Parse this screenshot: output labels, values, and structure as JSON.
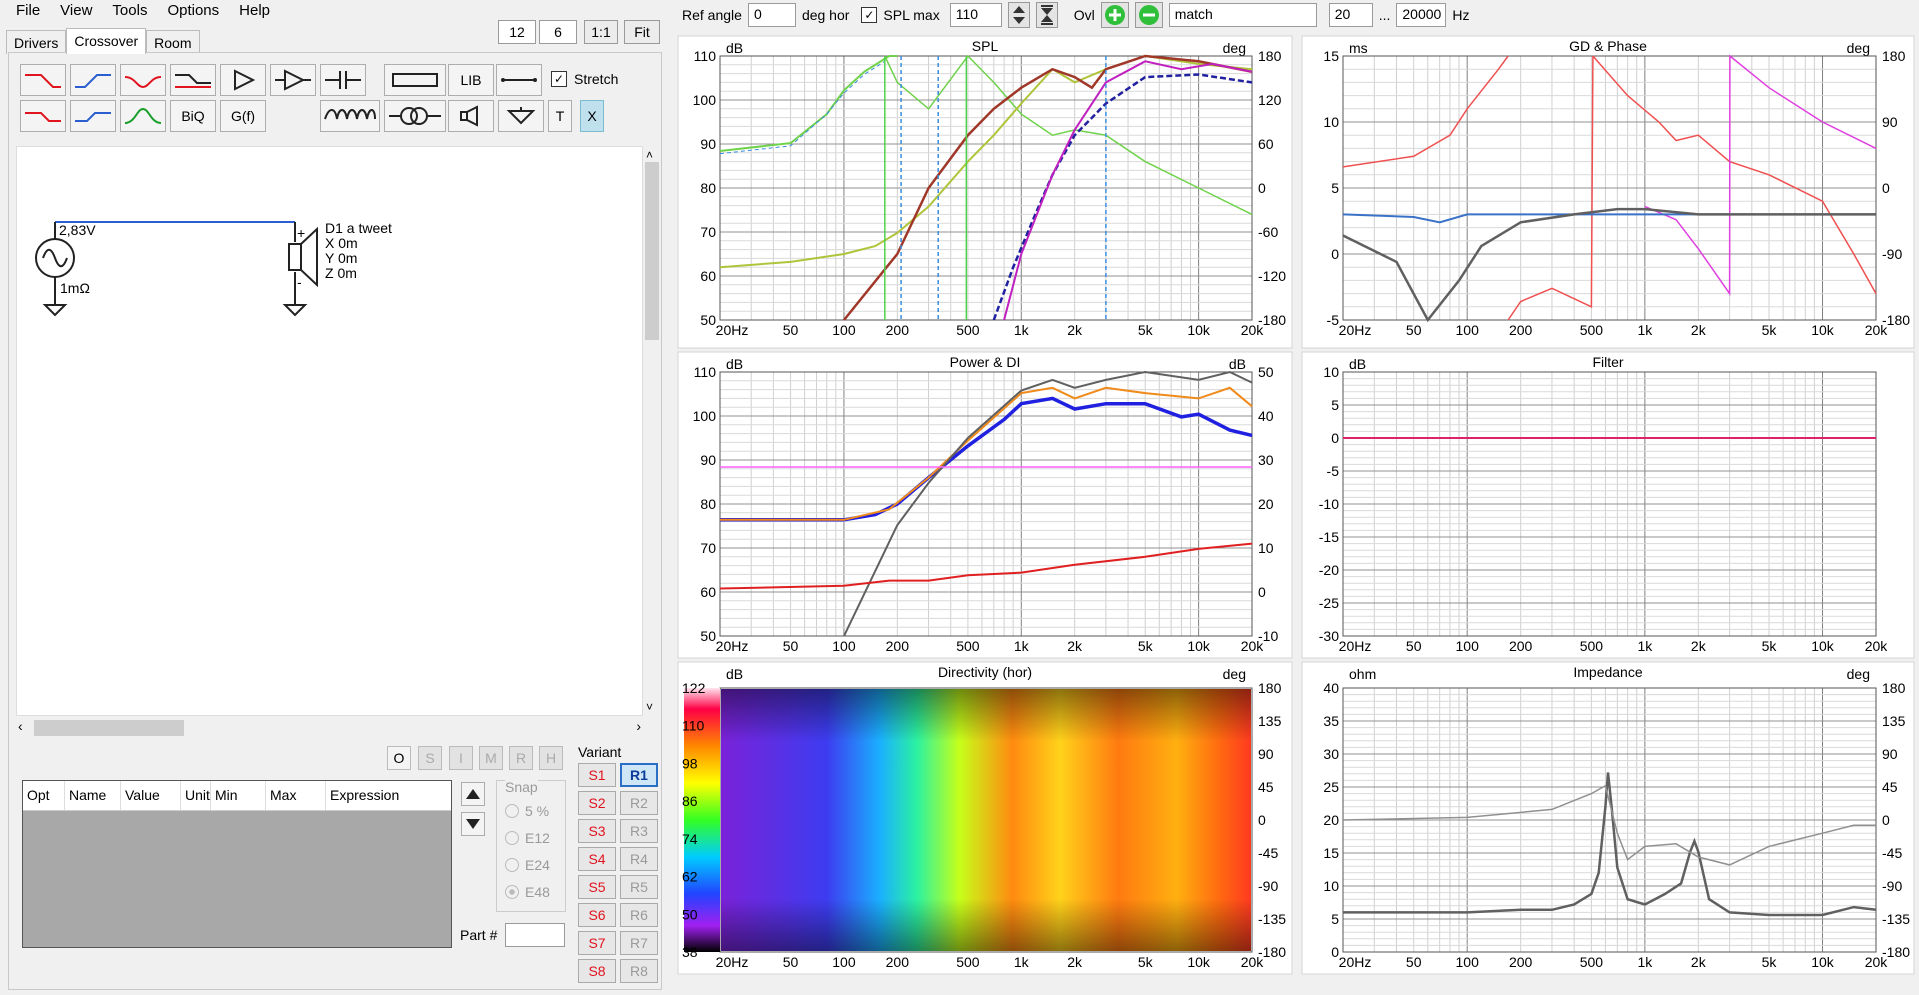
{
  "menu": [
    "File",
    "View",
    "Tools",
    "Options",
    "Help"
  ],
  "tabs": [
    "Drivers",
    "Crossover",
    "Room"
  ],
  "zoom": {
    "a": "12",
    "b": "6",
    "one_to_one": "1:1",
    "fit": "Fit"
  },
  "toolbar": {
    "biq": "BiQ",
    "gf": "G(f)",
    "lib": "LIB",
    "t": "T",
    "x": "X",
    "stretch": "Stretch"
  },
  "schematic": {
    "source_voltage": "2,83V",
    "source_res": "1mΩ",
    "driver_name": "D1 a tweet",
    "driver_x": "X 0m",
    "driver_y": "Y 0m",
    "driver_z": "Z 0m",
    "plus": "+",
    "minus": "-"
  },
  "opt_buttons": [
    "O",
    "S",
    "I",
    "M",
    "R",
    "H"
  ],
  "grid_headers": [
    "Opt",
    "Name",
    "Value",
    "Unit",
    "Min",
    "Max",
    "Expression"
  ],
  "snap": {
    "title": "Snap",
    "options": [
      "5 %",
      "E12",
      "E24",
      "E48"
    ]
  },
  "part_label": "Part #",
  "variant": {
    "title": "Variant",
    "s": [
      "S1",
      "S2",
      "S3",
      "S4",
      "S5",
      "S6",
      "S7",
      "S8"
    ],
    "r": [
      "R1",
      "R2",
      "R3",
      "R4",
      "R5",
      "R6",
      "R7",
      "R8"
    ]
  },
  "topbar": {
    "ref_angle_label": "Ref angle",
    "ref_angle": "0",
    "deg_hor": "deg hor",
    "spl_max_label": "SPL max",
    "spl_max": "110",
    "ovl": "Ovl",
    "match": "match",
    "f_low": "20",
    "dots": "...",
    "f_high": "20000",
    "hz": "Hz"
  },
  "freq_ticks": [
    "20Hz",
    "50",
    "100",
    "200",
    "500",
    "1k",
    "2k",
    "5k",
    "10k",
    "20k"
  ],
  "charts": {
    "spl": {
      "title": "SPL",
      "left_unit": "dB",
      "right_unit": "deg",
      "left_ticks": [
        "110",
        "100",
        "90",
        "80",
        "70",
        "60",
        "50"
      ],
      "right_ticks": [
        "180",
        "120",
        "60",
        "0",
        "-60",
        "-120",
        "-180"
      ]
    },
    "gd": {
      "title": "GD & Phase",
      "left_unit": "ms",
      "right_unit": "deg",
      "left_ticks": [
        "15",
        "10",
        "5",
        "0",
        "-5"
      ],
      "right_ticks": [
        "180",
        "90",
        "0",
        "-90",
        "-180"
      ]
    },
    "power": {
      "title": "Power & DI",
      "left_unit": "dB",
      "right_unit": "dB",
      "left_ticks": [
        "110",
        "100",
        "90",
        "80",
        "70",
        "60",
        "50"
      ],
      "right_ticks": [
        "50",
        "40",
        "30",
        "20",
        "10",
        "0",
        "-10"
      ]
    },
    "filter": {
      "title": "Filter",
      "left_unit": "dB",
      "left_ticks": [
        "10",
        "5",
        "0",
        "-5",
        "-10",
        "-15",
        "-20",
        "-25",
        "-30"
      ]
    },
    "dir": {
      "title": "Directivity (hor)",
      "left_unit": "dB",
      "right_unit": "deg",
      "scale": [
        "122",
        "110",
        "98",
        "86",
        "74",
        "62",
        "50",
        "38"
      ],
      "right_ticks": [
        "180",
        "135",
        "90",
        "45",
        "0",
        "-45",
        "-90",
        "-135",
        "-180"
      ]
    },
    "imp": {
      "title": "Impedance",
      "left_unit": "ohm",
      "right_unit": "deg",
      "left_ticks": [
        "40",
        "35",
        "30",
        "25",
        "20",
        "15",
        "10",
        "5",
        "0"
      ],
      "right_ticks": [
        "180",
        "135",
        "90",
        "45",
        "0",
        "-45",
        "-90",
        "-135",
        "-180"
      ]
    }
  },
  "colors": {
    "accent": "#2b6fc4",
    "red": "#e0141e",
    "green": "#2fbf3a"
  }
}
